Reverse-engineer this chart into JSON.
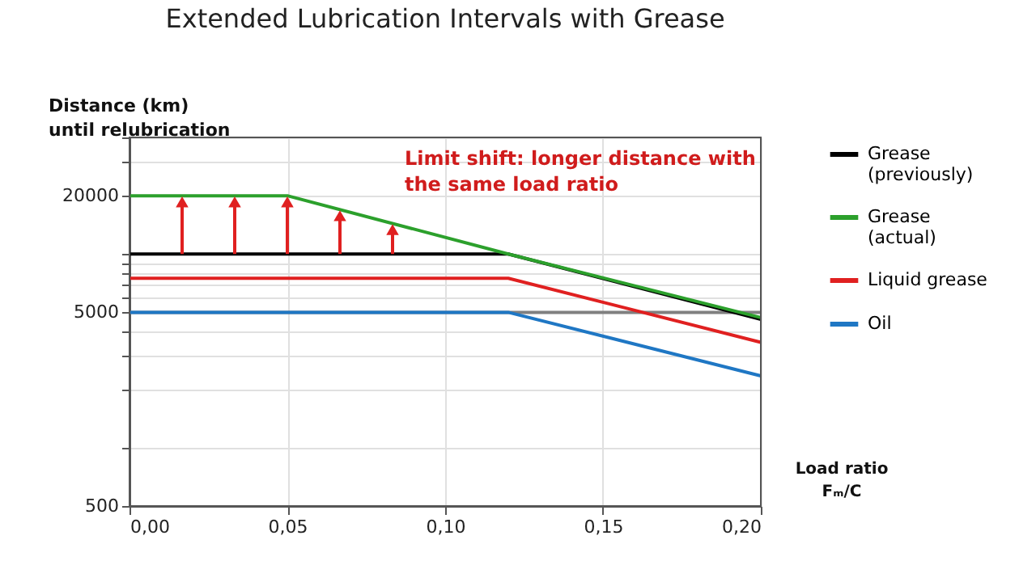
{
  "chart_data": {
    "type": "line",
    "title": "Extended Lubrication Intervals with Grease",
    "xlabel": "Load ratio\nFₘ/C",
    "ylabel": "Distance (km)\nuntil relubrication",
    "annotations": [
      "Limit shift: longer distance with\nthe same load ratio"
    ],
    "series": [
      {
        "name": "Grease\n(previously)",
        "color": "#000000",
        "x": [
          0,
          0.12,
          0.2
        ],
        "values": [
          10000,
          10000,
          4600
        ]
      },
      {
        "name": "Grease\n(actual)",
        "color": "#2ca02c",
        "x": [
          0,
          0.05,
          0.12,
          0.2
        ],
        "values": [
          20000,
          20000,
          10000,
          4700
        ]
      },
      {
        "name": "Liquid grease",
        "color": "#e02020",
        "x": [
          0,
          0.12,
          0.2
        ],
        "values": [
          7500,
          7500,
          3500
        ]
      },
      {
        "name": "Oil",
        "color": "#1f77c4",
        "x": [
          0,
          0.12,
          0.2
        ],
        "values": [
          5000,
          5000,
          2350
        ]
      }
    ],
    "log": "y",
    "xlim": [
      0,
      0.2
    ],
    "ylim": [
      500,
      40000
    ],
    "xticks": [
      {
        "value": 0,
        "label": "0,00"
      },
      {
        "value": 0.05,
        "label": "0,05"
      },
      {
        "value": 0.1,
        "label": "0,10"
      },
      {
        "value": 0.15,
        "label": "0,15"
      },
      {
        "value": 0.2,
        "label": "0,20"
      }
    ],
    "yticks": [
      500,
      {
        "value": 1000,
        "label": null
      },
      {
        "value": 2000,
        "label": null
      },
      {
        "value": 3000,
        "label": null
      },
      {
        "value": 4000,
        "label": null
      },
      5000,
      {
        "value": 6000,
        "label": null
      },
      {
        "value": 7000,
        "label": null
      },
      {
        "value": 8000,
        "label": null
      },
      {
        "value": 9000,
        "label": null
      },
      {
        "value": 10000,
        "label": null
      },
      20000,
      {
        "value": 30000,
        "label": null
      },
      {
        "value": 40000,
        "label": null
      }
    ],
    "ref_lines": [
      {
        "axis": "y",
        "value": 5000,
        "color": "#808080"
      }
    ],
    "grid": true,
    "legend": "right",
    "line_style": "solid",
    "marker": "none"
  }
}
